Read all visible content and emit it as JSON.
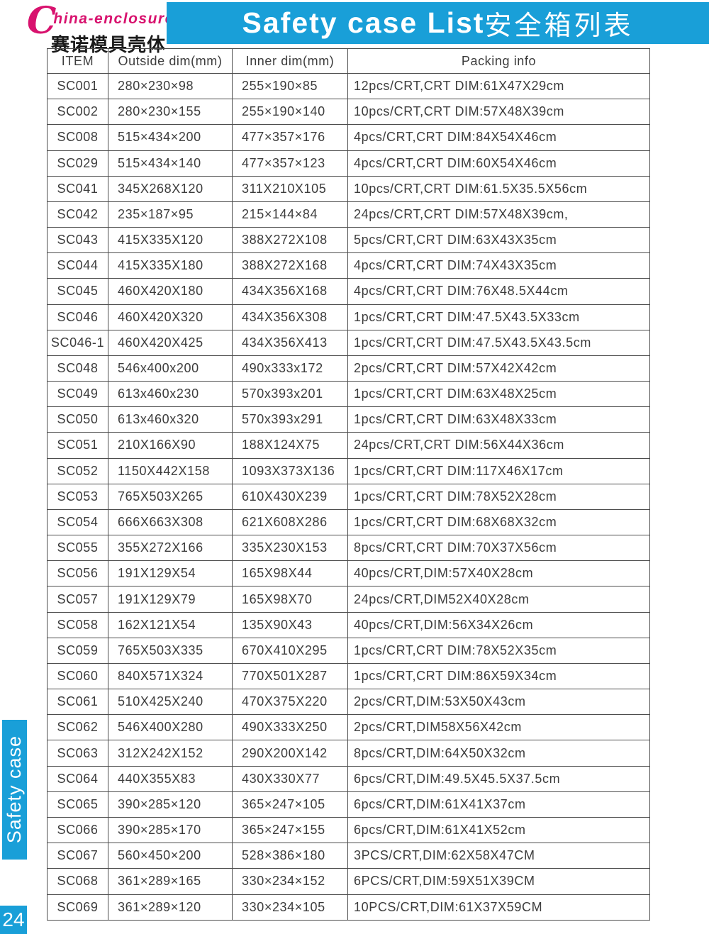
{
  "brand": {
    "logo_c": "C",
    "logo_rest": "hina-enclosure",
    "reg": "®",
    "logo_cn": "赛诺模具壳体"
  },
  "header": {
    "title_en": "Safety case List",
    "title_cn": "安全箱列表"
  },
  "sidebar": {
    "tab_label": "Safety case",
    "page_number": "24"
  },
  "colors": {
    "accent_cyan": "#199fd8",
    "brand_magenta": "#d8126e",
    "table_border": "#4d4d4d"
  },
  "table": {
    "headers": [
      "ITEM",
      "Outside dim(mm)",
      "Inner dim(mm)",
      "Packing info"
    ],
    "rows": [
      [
        "SC001",
        "280×230×98",
        "255×190×85",
        "12pcs/CRT,CRT DIM:61X47X29cm"
      ],
      [
        "SC002",
        "280×230×155",
        "255×190×140",
        "10pcs/CRT,CRT DIM:57X48X39cm"
      ],
      [
        "SC008",
        "515×434×200",
        "477×357×176",
        "4pcs/CRT,CRT DIM:84X54X46cm"
      ],
      [
        "SC029",
        "515×434×140",
        "477×357×123",
        "4pcs/CRT,CRT DIM:60X54X46cm"
      ],
      [
        "SC041",
        "345X268X120",
        "311X210X105",
        "10pcs/CRT,CRT DIM:61.5X35.5X56cm"
      ],
      [
        "SC042",
        "235×187×95",
        "215×144×84",
        "24pcs/CRT,CRT DIM:57X48X39cm,"
      ],
      [
        "SC043",
        "415X335X120",
        "388X272X108",
        "5pcs/CRT,CRT DIM:63X43X35cm"
      ],
      [
        "SC044",
        "415X335X180",
        "388X272X168",
        "4pcs/CRT,CRT DIM:74X43X35cm"
      ],
      [
        "SC045",
        "460X420X180",
        "434X356X168",
        "4pcs/CRT,CRT DIM:76X48.5X44cm"
      ],
      [
        "SC046",
        "460X420X320",
        "434X356X308",
        "1pcs/CRT,CRT DIM:47.5X43.5X33cm"
      ],
      [
        "SC046-1",
        "460X420X425",
        "434X356X413",
        "1pcs/CRT,CRT DIM:47.5X43.5X43.5cm"
      ],
      [
        "SC048",
        "546x400x200",
        "490x333x172",
        "2pcs/CRT,CRT DIM:57X42X42cm"
      ],
      [
        "SC049",
        "613x460x230",
        "570x393x201",
        "1pcs/CRT,CRT DIM:63X48X25cm"
      ],
      [
        "SC050",
        "613x460x320",
        "570x393x291",
        "1pcs/CRT,CRT DIM:63X48X33cm"
      ],
      [
        "SC051",
        "210X166X90",
        "188X124X75",
        "24pcs/CRT,CRT DIM:56X44X36cm"
      ],
      [
        "SC052",
        "1150X442X158",
        "1093X373X136",
        "1pcs/CRT,CRT DIM:117X46X17cm"
      ],
      [
        "SC053",
        "765X503X265",
        "610X430X239",
        "1pcs/CRT,CRT DIM:78X52X28cm"
      ],
      [
        "SC054",
        "666X663X308",
        "621X608X286",
        "1pcs/CRT,CRT DIM:68X68X32cm"
      ],
      [
        "SC055",
        "355X272X166",
        "335X230X153",
        "8pcs/CRT,CRT DIM:70X37X56cm"
      ],
      [
        "SC056",
        "191X129X54",
        "165X98X44",
        "40pcs/CRT,DIM:57X40X28cm"
      ],
      [
        "SC057",
        "191X129X79",
        "165X98X70",
        "24pcs/CRT,DIM52X40X28cm"
      ],
      [
        "SC058",
        "162X121X54",
        "135X90X43",
        "40pcs/CRT,DIM:56X34X26cm"
      ],
      [
        "SC059",
        "765X503X335",
        "670X410X295",
        "1pcs/CRT,CRT DIM:78X52X35cm"
      ],
      [
        "SC060",
        "840X571X324",
        "770X501X287",
        "1pcs/CRT,CRT DIM:86X59X34cm"
      ],
      [
        "SC061",
        "510X425X240",
        "470X375X220",
        "2pcs/CRT,DIM:53X50X43cm"
      ],
      [
        "SC062",
        "546X400X280",
        "490X333X250",
        "2pcs/CRT,DIM58X56X42cm"
      ],
      [
        "SC063",
        "312X242X152",
        "290X200X142",
        "8pcs/CRT,DIM:64X50X32cm"
      ],
      [
        "SC064",
        "440X355X83",
        "430X330X77",
        "6pcs/CRT,DIM:49.5X45.5X37.5cm"
      ],
      [
        "SC065",
        "390×285×120",
        "365×247×105",
        "6pcs/CRT,DIM:61X41X37cm"
      ],
      [
        "SC066",
        "390×285×170",
        "365×247×155",
        "6pcs/CRT,DIM:61X41X52cm"
      ],
      [
        "SC067",
        "560×450×200",
        "528×386×180",
        "3PCS/CRT,DIM:62X58X47CM"
      ],
      [
        "SC068",
        "361×289×165",
        "330×234×152",
        "6PCS/CRT,DIM:59X51X39CM"
      ],
      [
        "SC069",
        "361×289×120",
        "330×234×105",
        "10PCS/CRT,DIM:61X37X59CM"
      ]
    ]
  }
}
